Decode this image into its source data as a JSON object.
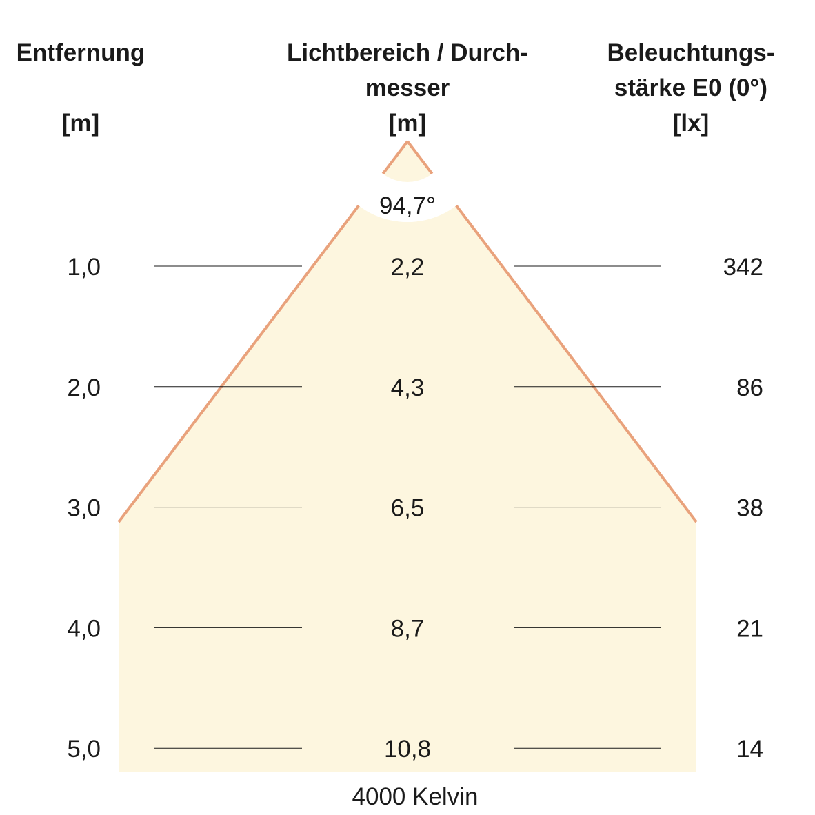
{
  "headers": {
    "distance": {
      "line1": "Entfernung",
      "unit": "[m]"
    },
    "diameter": {
      "line1": "Lichtbereich / Durch-",
      "line2": "messer",
      "unit": "[m]"
    },
    "illuminance": {
      "line1": "Beleuchtungs-",
      "line2": "stärke E0 (0°)",
      "unit": "[lx]"
    }
  },
  "beam_angle": "94,7°",
  "color_temperature": "4000 Kelvin",
  "rows": [
    {
      "distance": "1,0",
      "diameter": "2,2",
      "illuminance": "342"
    },
    {
      "distance": "2,0",
      "diameter": "4,3",
      "illuminance": "86"
    },
    {
      "distance": "3,0",
      "diameter": "6,5",
      "illuminance": "38"
    },
    {
      "distance": "4,0",
      "diameter": "8,7",
      "illuminance": "21"
    },
    {
      "distance": "5,0",
      "diameter": "10,8",
      "illuminance": "14"
    }
  ],
  "colors": {
    "cone_fill": "#fdf6df",
    "cone_edge": "#e9a27c",
    "text": "#1a1a1a"
  }
}
